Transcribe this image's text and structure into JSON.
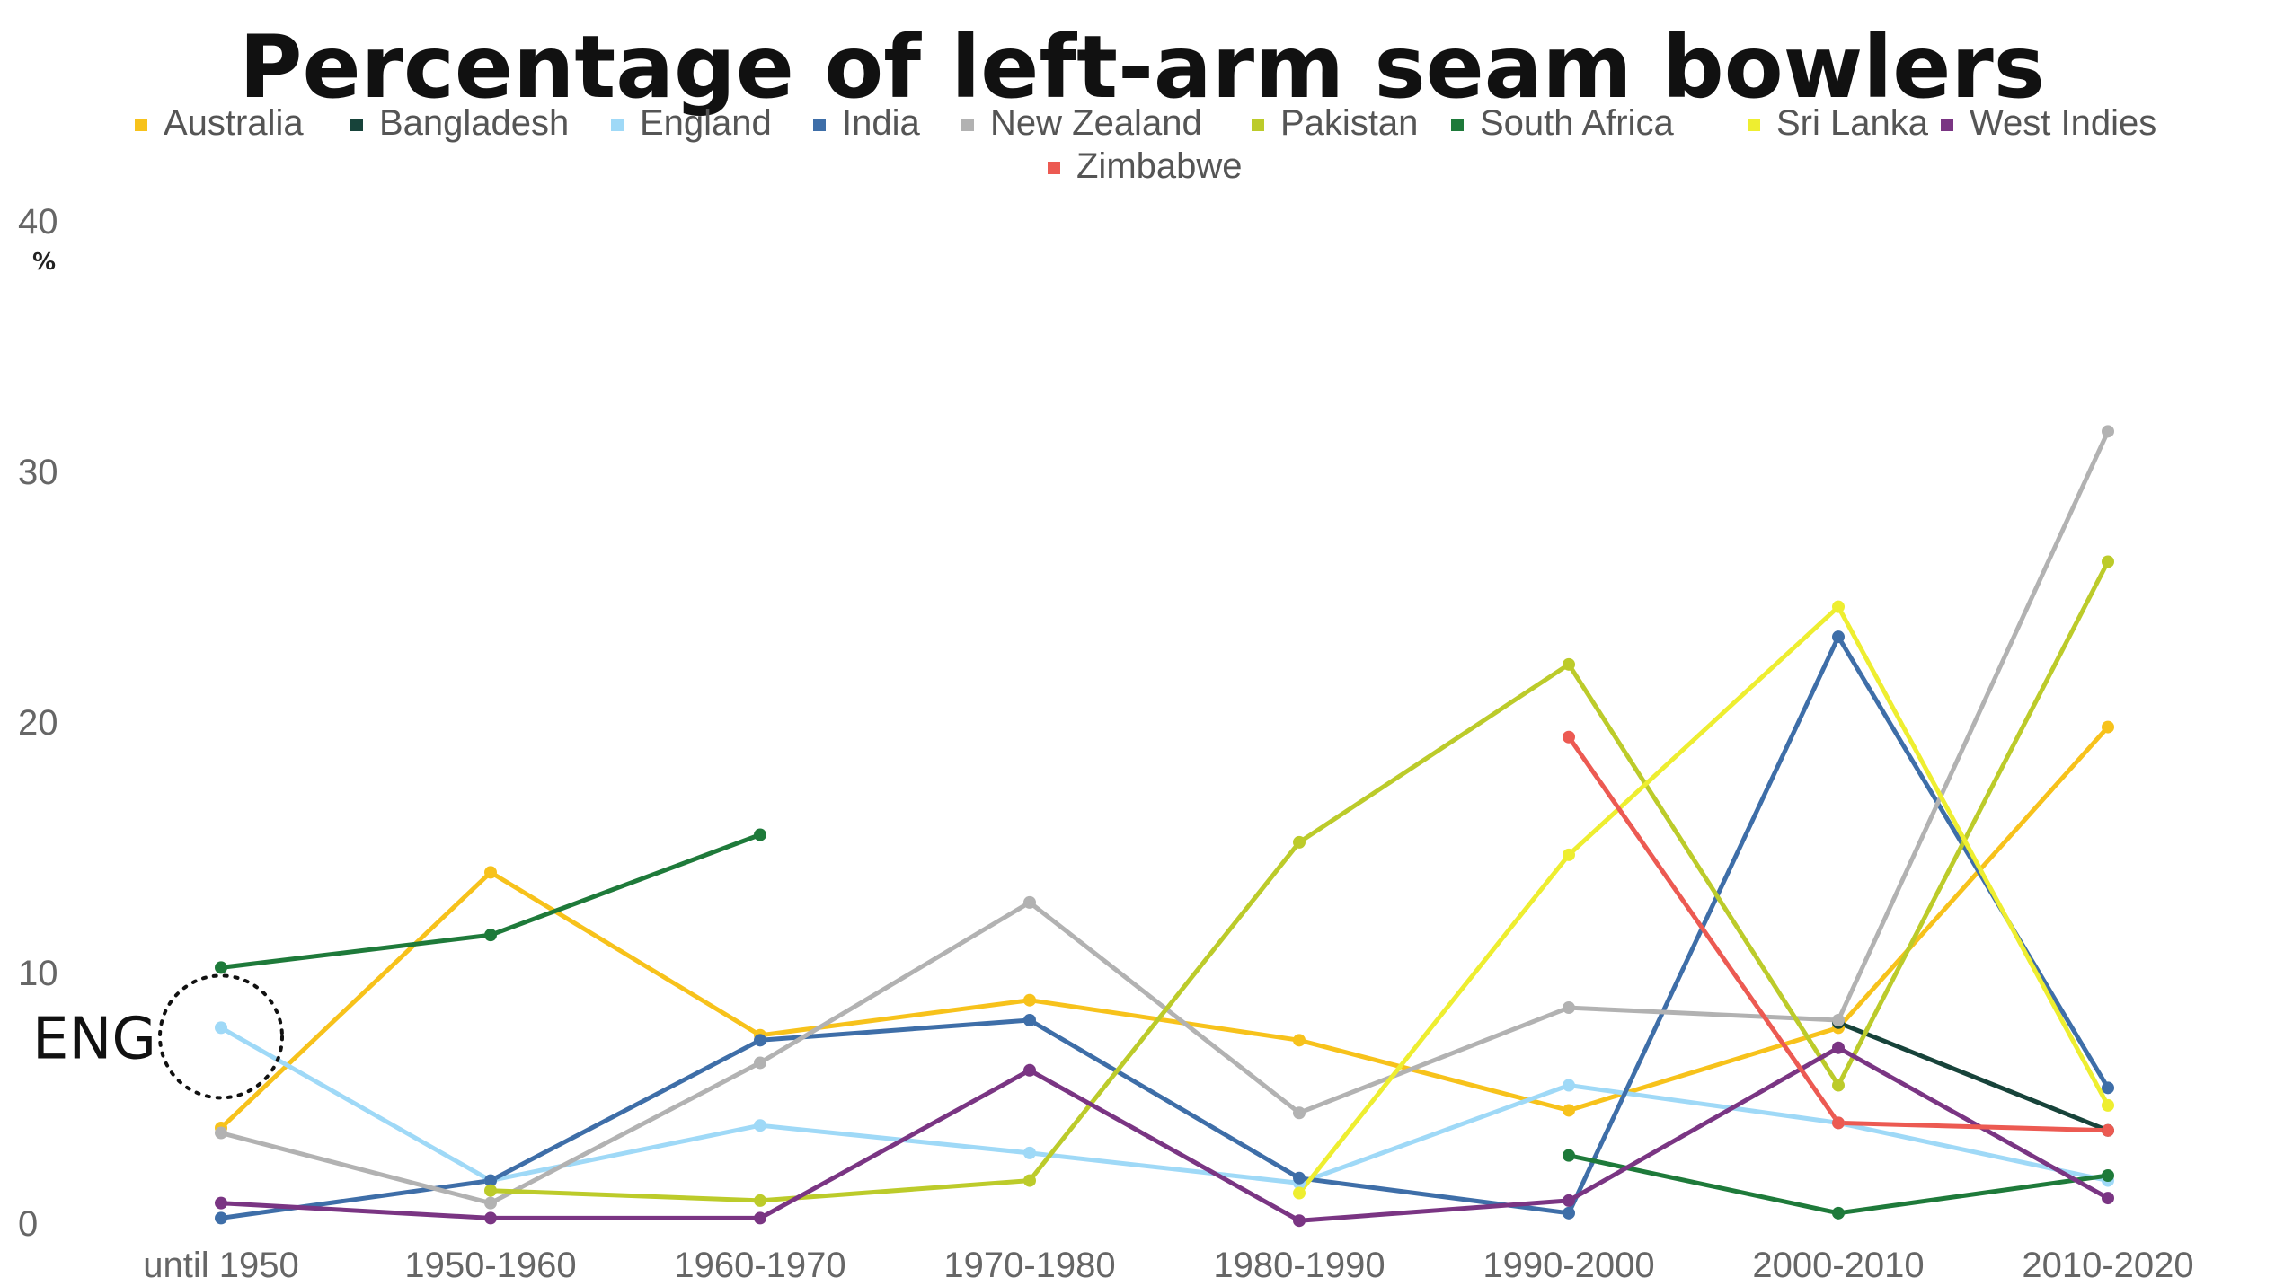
{
  "chart_data": {
    "type": "line",
    "title": "Percentage of left-arm seam bowlers",
    "ylabel": "%",
    "xlabel": "",
    "ylim": [
      0,
      40
    ],
    "yticks": [
      0,
      10,
      20,
      30,
      40
    ],
    "grid": false,
    "legend_placement": "top",
    "categories": [
      "until 1950",
      "1950-1960",
      "1960-1970",
      "1970-1980",
      "1980-1990",
      "1990-2000",
      "2000-2010",
      "2010-2020"
    ],
    "series": [
      {
        "name": "Australia",
        "color": "#f7c21b",
        "values": [
          3.8,
          14.0,
          7.5,
          8.9,
          7.3,
          4.5,
          7.8,
          19.8
        ]
      },
      {
        "name": "Bangladesh",
        "color": "#17433a",
        "values": [
          null,
          null,
          null,
          null,
          null,
          null,
          8.0,
          3.7
        ]
      },
      {
        "name": "England",
        "color": "#9fd9f7",
        "values": [
          7.8,
          1.7,
          3.9,
          2.8,
          1.6,
          5.5,
          4.0,
          1.7
        ]
      },
      {
        "name": "India",
        "color": "#3e6ea8",
        "values": [
          0.2,
          1.7,
          7.3,
          8.1,
          1.8,
          0.4,
          23.4,
          5.4
        ]
      },
      {
        "name": "New Zealand",
        "color": "#b2b2b2",
        "values": [
          3.6,
          0.8,
          6.4,
          12.8,
          4.4,
          8.6,
          8.1,
          31.6
        ]
      },
      {
        "name": "Pakistan",
        "color": "#bccb2a",
        "values": [
          null,
          1.3,
          0.9,
          1.7,
          15.2,
          22.3,
          5.5,
          26.4
        ]
      },
      {
        "name": "South Africa",
        "color": "#1e7a3a",
        "values": [
          10.2,
          11.5,
          15.5,
          null,
          null,
          2.7,
          0.4,
          1.9
        ]
      },
      {
        "name": "Sri Lanka",
        "color": "#eeee30",
        "values": [
          null,
          null,
          null,
          null,
          1.2,
          14.7,
          24.6,
          4.7
        ]
      },
      {
        "name": "West Indies",
        "color": "#7a3583",
        "values": [
          0.8,
          0.2,
          0.2,
          6.1,
          0.1,
          0.9,
          7.0,
          1.0
        ]
      },
      {
        "name": "Zimbabwe",
        "color": "#ec5a52",
        "values": [
          null,
          null,
          null,
          null,
          null,
          19.4,
          4.0,
          3.7
        ]
      }
    ],
    "annotations": [
      {
        "text": "ENG",
        "category": "until 1950",
        "value": 7.8
      }
    ]
  }
}
